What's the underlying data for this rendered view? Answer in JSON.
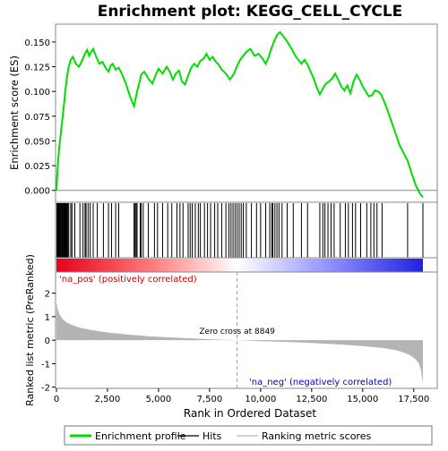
{
  "chart_data": {
    "type": "line",
    "title": "Enrichment plot: KEGG_CELL_CYCLE",
    "top_panel": {
      "ylabel": "Enrichment score (ES)",
      "ylim": [
        -0.012,
        0.168
      ],
      "yticks": [
        0.0,
        0.025,
        0.05,
        0.075,
        0.1,
        0.125,
        0.15
      ],
      "ytick_labels": [
        "0.000",
        "0.025",
        "0.050",
        "0.075",
        "0.100",
        "0.125",
        "0.150"
      ],
      "series": [
        {
          "name": "Enrichment profile",
          "color": "#00dd00",
          "x": [
            0,
            50,
            120,
            200,
            280,
            360,
            430,
            520,
            600,
            700,
            800,
            950,
            1100,
            1250,
            1400,
            1500,
            1600,
            1700,
            1800,
            1950,
            2100,
            2250,
            2400,
            2550,
            2650,
            2750,
            2900,
            3050,
            3200,
            3400,
            3600,
            3800,
            3950,
            4050,
            4150,
            4300,
            4500,
            4700,
            4850,
            5000,
            5200,
            5400,
            5550,
            5700,
            5850,
            6000,
            6150,
            6300,
            6450,
            6600,
            6750,
            6900,
            7050,
            7200,
            7350,
            7500,
            7650,
            7800,
            7950,
            8100,
            8300,
            8500,
            8700,
            8850,
            9000,
            9150,
            9300,
            9500,
            9700,
            9900,
            10100,
            10250,
            10400,
            10500,
            10650,
            10800,
            10950,
            11100,
            11250,
            11400,
            11550,
            11700,
            11850,
            12000,
            12150,
            12300,
            12450,
            12600,
            12750,
            12900,
            13050,
            13200,
            13350,
            13500,
            13650,
            13800,
            13950,
            14100,
            14250,
            14400,
            14550,
            14700,
            14850,
            15000,
            15150,
            15300,
            15450,
            15600,
            15750,
            15900,
            16050,
            16200,
            16400,
            16600,
            16800,
            17000,
            17200,
            17400,
            17600,
            17800,
            17950
          ],
          "y": [
            0.0,
            0.02,
            0.04,
            0.055,
            0.07,
            0.085,
            0.1,
            0.115,
            0.125,
            0.132,
            0.135,
            0.128,
            0.125,
            0.131,
            0.138,
            0.142,
            0.136,
            0.14,
            0.143,
            0.135,
            0.128,
            0.13,
            0.124,
            0.12,
            0.126,
            0.128,
            0.122,
            0.124,
            0.118,
            0.108,
            0.095,
            0.085,
            0.1,
            0.108,
            0.117,
            0.12,
            0.113,
            0.108,
            0.116,
            0.123,
            0.118,
            0.125,
            0.12,
            0.112,
            0.118,
            0.121,
            0.11,
            0.107,
            0.116,
            0.124,
            0.128,
            0.125,
            0.131,
            0.133,
            0.138,
            0.132,
            0.135,
            0.13,
            0.127,
            0.122,
            0.118,
            0.112,
            0.118,
            0.126,
            0.132,
            0.136,
            0.14,
            0.143,
            0.136,
            0.138,
            0.133,
            0.128,
            0.135,
            0.142,
            0.15,
            0.157,
            0.16,
            0.156,
            0.152,
            0.147,
            0.142,
            0.136,
            0.132,
            0.128,
            0.132,
            0.127,
            0.12,
            0.113,
            0.104,
            0.097,
            0.103,
            0.108,
            0.11,
            0.113,
            0.118,
            0.112,
            0.105,
            0.101,
            0.106,
            0.098,
            0.11,
            0.117,
            0.112,
            0.105,
            0.1,
            0.095,
            0.096,
            0.101,
            0.1,
            0.097,
            0.09,
            0.082,
            0.07,
            0.058,
            0.046,
            0.038,
            0.03,
            0.017,
            0.005,
            -0.003,
            -0.007
          ]
        }
      ]
    },
    "hits": {
      "name": "Hits",
      "color": "#000000",
      "x": [
        20,
        60,
        95,
        130,
        165,
        200,
        235,
        270,
        300,
        335,
        370,
        400,
        430,
        460,
        490,
        520,
        560,
        600,
        700,
        760,
        900,
        1150,
        1300,
        1400,
        1450,
        1550,
        1650,
        1800,
        2000,
        2300,
        2550,
        2700,
        2900,
        3050,
        3800,
        3850,
        3900,
        3950,
        4100,
        4150,
        4250,
        4500,
        4800,
        4950,
        5200,
        5450,
        5650,
        5900,
        6050,
        6200,
        6450,
        6550,
        6650,
        6800,
        6950,
        7050,
        7250,
        7400,
        7550,
        7750,
        7900,
        8100,
        8300,
        8450,
        8550,
        8650,
        8750,
        8850,
        8950,
        9050,
        9150,
        9300,
        9550,
        9800,
        10000,
        10250,
        10450,
        10550,
        10600,
        10700,
        10800,
        10900,
        11050,
        11300,
        11600,
        12000,
        12300,
        12900,
        13050,
        13150,
        13300,
        13450,
        13600,
        13900,
        14150,
        14300,
        14500,
        14650,
        14900,
        15200,
        15400,
        15550,
        15700,
        15950,
        17200,
        17950
      ]
    },
    "ranking_bar": {
      "positive_color": "#e8001c",
      "negative_color": "#2020e0",
      "zero_color": "#ffffff"
    },
    "bottom_panel": {
      "ylabel": "Ranked list metric (PreRanked)",
      "ylim": [
        -2.05,
        2.9
      ],
      "yticks": [
        -2,
        -1,
        0,
        1,
        2
      ],
      "ytick_labels": [
        "-2",
        "-1",
        "0",
        "1",
        "2"
      ],
      "xlabel": "Rank in Ordered Dataset",
      "xlim": [
        0,
        18800
      ],
      "xticks": [
        0,
        2500,
        5000,
        7500,
        10000,
        12500,
        15000,
        17500
      ],
      "xtick_labels": [
        "0",
        "2,500",
        "5,000",
        "7,500",
        "10,000",
        "12,500",
        "15,000",
        "17,500"
      ],
      "metric": {
        "name": "Ranking metric scores",
        "color": "#b4b4b4",
        "x": [
          0,
          50,
          150,
          300,
          500,
          800,
          1200,
          1800,
          2500,
          3500,
          4500,
          5500,
          6500,
          7500,
          8849,
          10000,
          11000,
          12000,
          13000,
          14000,
          15000,
          16000,
          16600,
          17000,
          17300,
          17550,
          17750,
          17850,
          17950
        ],
        "y": [
          1.65,
          1.35,
          1.1,
          0.9,
          0.75,
          0.63,
          0.52,
          0.42,
          0.33,
          0.24,
          0.17,
          0.12,
          0.08,
          0.04,
          0.0,
          -0.04,
          -0.07,
          -0.1,
          -0.14,
          -0.19,
          -0.25,
          -0.33,
          -0.42,
          -0.52,
          -0.63,
          -0.78,
          -0.98,
          -1.25,
          -1.85
        ]
      },
      "zero_cross_rank": 8849,
      "zero_cross_label": "Zero cross at 8849",
      "pos_label": "'na_pos' (positively correlated)",
      "neg_label": "'na_neg' (negatively correlated)"
    },
    "legend": {
      "placement": "bottom",
      "entries": [
        {
          "label": "Enrichment profile",
          "color": "#00dd00",
          "kind": "thick-line"
        },
        {
          "label": "Hits",
          "color": "#000000",
          "kind": "line"
        },
        {
          "label": "Ranking metric scores",
          "color": "#b4b4b4",
          "kind": "line"
        }
      ]
    }
  }
}
